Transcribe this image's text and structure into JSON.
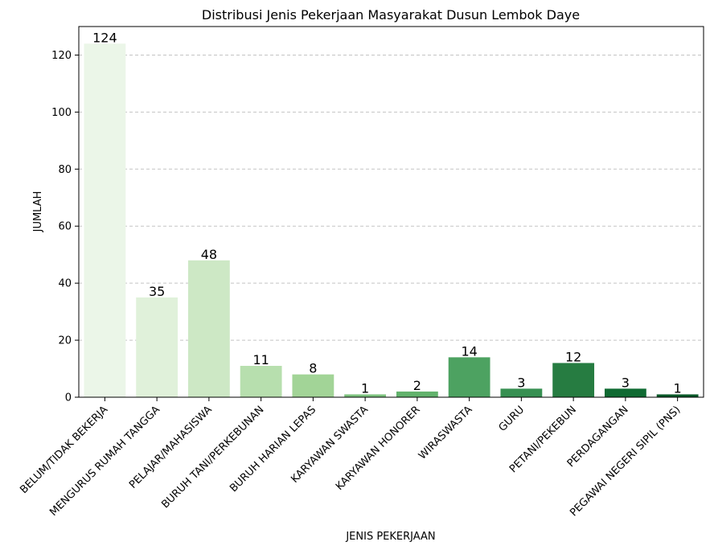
{
  "chart_data": {
    "type": "bar",
    "title": "Distribusi Jenis Pekerjaan Masyarakat Dusun Lembok Daye",
    "xlabel": "JENIS PEKERJAAN",
    "ylabel": "JUMLAH",
    "categories": [
      "BELUM/TIDAK BEKERJA",
      "MENGURUS RUMAH TANGGA",
      "PELAJAR/MAHASISWA",
      "BURUH TANI/PERKEBUNAN",
      "BURUH HARIAN LEPAS",
      "KARYAWAN SWASTA",
      "KARYAWAN HONORER",
      "WIRASWASTA",
      "GURU",
      "PETANI/PEKEBUN",
      "PERDAGANGAN",
      "PEGAWAI NEGERI SIPIL (PNS)"
    ],
    "values": [
      124,
      35,
      48,
      11,
      8,
      1,
      2,
      14,
      3,
      12,
      3,
      1
    ],
    "colors": [
      "#ebf6e8",
      "#e0f1da",
      "#cde8c5",
      "#b7dfae",
      "#a2d497",
      "#7dc27e",
      "#62b26c",
      "#4da261",
      "#379052",
      "#267c41",
      "#0f6a32",
      "#0b5a2a"
    ],
    "ylim": [
      0,
      130
    ],
    "yticks": [
      0,
      20,
      40,
      60,
      80,
      100,
      120
    ],
    "grid": "y-dashed",
    "legend": "none"
  }
}
